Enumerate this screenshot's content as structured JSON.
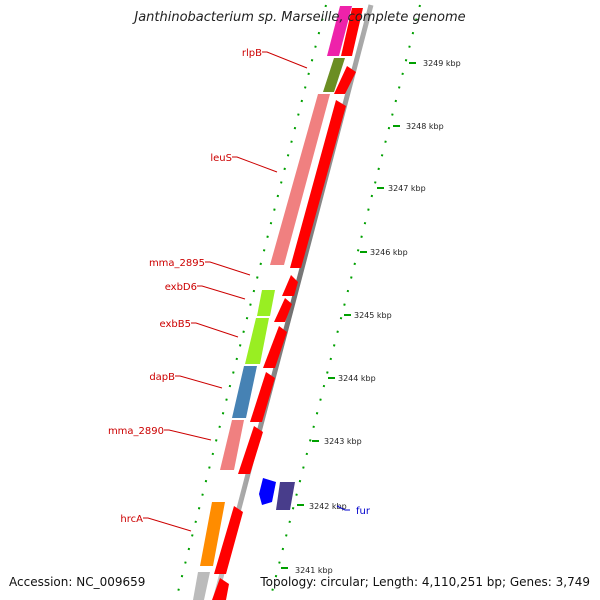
{
  "title": "Janthinobacterium sp. Marseille, complete genome",
  "footer": {
    "accession": "Accession: NC_009659",
    "topology": "Topology: circular; Length: 4,110,251 bp; Genes: 3,749"
  },
  "colors": {
    "backbone": "#8c8c8c",
    "gene_arrow": "#ff0000",
    "tick": "#00a000",
    "label_red": "#cc0000",
    "label_blue": "#0000cc"
  },
  "scale_labels": [
    "3249 kbp",
    "3248 kbp",
    "3247 kbp",
    "3246 kbp",
    "3245 kbp",
    "3244 kbp",
    "3243 kbp",
    "3242 kbp",
    "3241 kbp"
  ],
  "genes": [
    {
      "name": "rlpB",
      "color": "#6b8e23"
    },
    {
      "name": "leuS",
      "color": "#f08080"
    },
    {
      "name": "mma_2895",
      "color": ""
    },
    {
      "name": "exbD6",
      "color": "#99ee22"
    },
    {
      "name": "exbB5",
      "color": "#99ee22"
    },
    {
      "name": "dapB",
      "color": "#4682b4"
    },
    {
      "name": "mma_2890",
      "color": "#f08080"
    },
    {
      "name": "hrcA",
      "color": "#ff8c00"
    },
    {
      "name": "fur",
      "color": "#0000ff"
    }
  ]
}
